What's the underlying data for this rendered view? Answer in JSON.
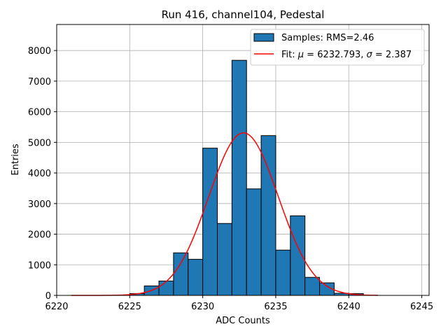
{
  "chart_data": {
    "type": "bar",
    "title": "Run 416, channel104, Pedestal",
    "xlabel": "ADC Counts",
    "ylabel": "Entries",
    "xlim": [
      6220,
      6245.5
    ],
    "ylim": [
      0,
      8850
    ],
    "xticks": [
      6220,
      6225,
      6230,
      6235,
      6240,
      6245
    ],
    "yticks": [
      0,
      1000,
      2000,
      3000,
      4000,
      5000,
      6000,
      7000,
      8000
    ],
    "grid": true,
    "legend_position": "top-right",
    "histogram": {
      "name": "Samples: RMS=2.46",
      "color": "#1f77b4",
      "bin_width": 1,
      "bins": [
        {
          "left": 6225,
          "count": 60
        },
        {
          "left": 6226,
          "count": 310
        },
        {
          "left": 6227,
          "count": 470
        },
        {
          "left": 6228,
          "count": 1390
        },
        {
          "left": 6229,
          "count": 1180
        },
        {
          "left": 6230,
          "count": 4810
        },
        {
          "left": 6231,
          "count": 2350
        },
        {
          "left": 6232,
          "count": 7680
        },
        {
          "left": 6233,
          "count": 3480
        },
        {
          "left": 6234,
          "count": 5220
        },
        {
          "left": 6235,
          "count": 1480
        },
        {
          "left": 6236,
          "count": 2600
        },
        {
          "left": 6237,
          "count": 590
        },
        {
          "left": 6238,
          "count": 410
        },
        {
          "left": 6239,
          "count": 70
        },
        {
          "left": 6240,
          "count": 60
        }
      ]
    },
    "fit": {
      "name_prefix": "Fit: ",
      "mu_symbol": "μ",
      "sigma_symbol": "σ",
      "name_middle": " = 6232.793, ",
      "name_end": " = 2.387",
      "color": "#ff0000",
      "mu": 6232.793,
      "sigma": 2.387,
      "amplitude": 5310,
      "x_range": [
        6221,
        6242
      ]
    }
  }
}
